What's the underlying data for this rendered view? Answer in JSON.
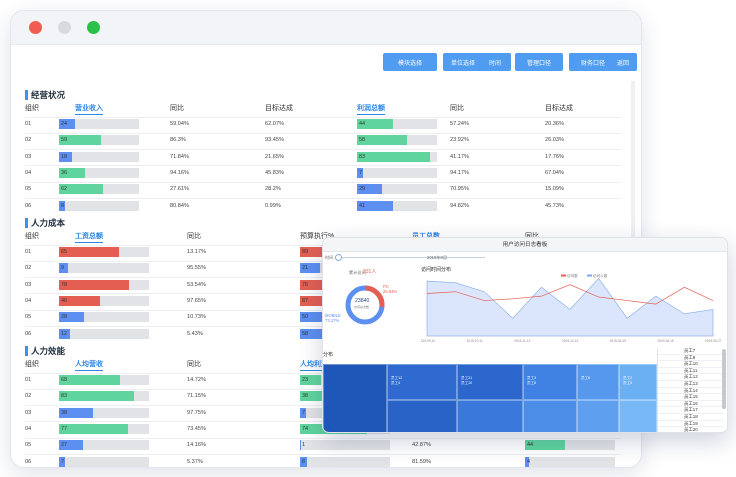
{
  "window_controls": [
    "close",
    "minimize",
    "maximize"
  ],
  "toolbar": {
    "buttons": [
      "模块选择",
      "单位选择",
      "时间",
      "管理口径",
      "财务口径",
      "返回"
    ]
  },
  "sections": [
    {
      "title": "经营状况",
      "col_headers": [
        "组织",
        "营业收入",
        "同比",
        "目标达成",
        "利润总额",
        "同比",
        "目标达成"
      ],
      "rows": [
        {
          "org": "01",
          "a_val": "24",
          "a_pct": 0.2,
          "a_color": "#5c8ff0",
          "a_yoy": "59.04%",
          "a_target": "62.07%",
          "b_val": "44",
          "b_pct": 0.45,
          "b_color": "#5fd49d",
          "b_yoy": "57.24%",
          "b_target": "20.36%"
        },
        {
          "org": "02",
          "a_val": "59",
          "a_pct": 0.53,
          "a_color": "#5fd49d",
          "a_yoy": "86.3%",
          "a_target": "93.45%",
          "b_val": "58",
          "b_pct": 0.62,
          "b_color": "#5fd49d",
          "b_yoy": "23.92%",
          "b_target": "26.03%"
        },
        {
          "org": "03",
          "a_val": "18",
          "a_pct": 0.16,
          "a_color": "#5c8ff0",
          "a_yoy": "71.84%",
          "a_target": "21.65%",
          "b_val": "83",
          "b_pct": 0.91,
          "b_color": "#5fd49d",
          "b_yoy": "41.17%",
          "b_target": "17.76%"
        },
        {
          "org": "04",
          "a_val": "36",
          "a_pct": 0.32,
          "a_color": "#5fd49d",
          "a_yoy": "94.16%",
          "a_target": "45.83%",
          "b_val": "7",
          "b_pct": 0.07,
          "b_color": "#5c8ff0",
          "b_yoy": "94.17%",
          "b_target": "67.04%"
        },
        {
          "org": "05",
          "a_val": "62",
          "a_pct": 0.55,
          "a_color": "#5fd49d",
          "a_yoy": "27.61%",
          "a_target": "28.2%",
          "b_val": "29",
          "b_pct": 0.31,
          "b_color": "#5c8ff0",
          "b_yoy": "70.95%",
          "b_target": "15.09%"
        },
        {
          "org": "06",
          "a_val": "8",
          "a_pct": 0.07,
          "a_color": "#5c8ff0",
          "a_yoy": "80.84%",
          "a_target": "0.99%",
          "b_val": "41",
          "b_pct": 0.45,
          "b_color": "#5c8ff0",
          "b_yoy": "94.82%",
          "b_target": "45.73%"
        }
      ]
    },
    {
      "title": "人力成本",
      "col_headers": [
        "组织",
        "工资总额",
        "同比",
        "预算执行%",
        "员工总数",
        "同比"
      ],
      "rows": [
        {
          "org": "01",
          "a_val": "65",
          "a_pct": 0.67,
          "a_color": "#e45f52",
          "a_yoy": "13.17%",
          "a_target": "",
          "b_val": "89",
          "b_pct": 0.9,
          "b_color": "#e45f52",
          "b_yoy": "",
          "b_target": ""
        },
        {
          "org": "02",
          "a_val": "9",
          "a_pct": 0.1,
          "a_color": "#5c8ff0",
          "a_yoy": "95.55%",
          "a_target": "",
          "b_val": "21",
          "b_pct": 0.22,
          "b_color": "#5c8ff0",
          "b_yoy": "",
          "b_target": ""
        },
        {
          "org": "03",
          "a_val": "78",
          "a_pct": 0.78,
          "a_color": "#e45f52",
          "a_yoy": "53.54%",
          "a_target": "",
          "b_val": "76",
          "b_pct": 0.77,
          "b_color": "#e45f52",
          "b_yoy": "",
          "b_target": ""
        },
        {
          "org": "04",
          "a_val": "46",
          "a_pct": 0.46,
          "a_color": "#e45f52",
          "a_yoy": "97.65%",
          "a_target": "",
          "b_val": "87",
          "b_pct": 0.87,
          "b_color": "#e45f52",
          "b_yoy": "",
          "b_target": ""
        },
        {
          "org": "05",
          "a_val": "28",
          "a_pct": 0.28,
          "a_color": "#5c8ff0",
          "a_yoy": "10.73%",
          "a_target": "",
          "b_val": "50",
          "b_pct": 0.5,
          "b_color": "#5c8ff0",
          "b_yoy": "",
          "b_target": ""
        },
        {
          "org": "06",
          "a_val": "12",
          "a_pct": 0.12,
          "a_color": "#5c8ff0",
          "a_yoy": "5.43%",
          "a_target": "",
          "b_val": "58",
          "b_pct": 0.58,
          "b_color": "#5c8ff0",
          "b_yoy": "",
          "b_target": ""
        }
      ]
    },
    {
      "title": "人力效能",
      "col_headers": [
        "组织",
        "人均营收",
        "同比",
        "人均利润"
      ],
      "rows": [
        {
          "org": "01",
          "a_val": "68",
          "a_pct": 0.68,
          "a_color": "#5fd49d",
          "a_yoy": "14.72%",
          "a_target": "",
          "b_val": "23",
          "b_pct": 0.23,
          "b_color": "#5fd49d",
          "b_yoy": "",
          "b_target": "",
          "c_val": "",
          "c_pct": 0,
          "c_color": "#5fd49d"
        },
        {
          "org": "02",
          "a_val": "83",
          "a_pct": 0.83,
          "a_color": "#5fd49d",
          "a_yoy": "71.15%",
          "a_target": "",
          "b_val": "38",
          "b_pct": 0.38,
          "b_color": "#5fd49d",
          "b_yoy": "",
          "b_target": "",
          "c_val": "",
          "c_pct": 0,
          "c_color": "#5fd49d"
        },
        {
          "org": "03",
          "a_val": "38",
          "a_pct": 0.38,
          "a_color": "#5c8ff0",
          "a_yoy": "97.75%",
          "a_target": "",
          "b_val": "7",
          "b_pct": 0.07,
          "b_color": "#5c8ff0",
          "b_yoy": "",
          "b_target": "",
          "c_val": "",
          "c_pct": 0,
          "c_color": "#5fd49d"
        },
        {
          "org": "04",
          "a_val": "77",
          "a_pct": 0.77,
          "a_color": "#5fd49d",
          "a_yoy": "73.45%",
          "a_target": "",
          "b_val": "74",
          "b_pct": 0.74,
          "b_color": "#5fd49d",
          "b_yoy": "",
          "b_target": "",
          "c_val": "",
          "c_pct": 0,
          "c_color": "#5fd49d"
        },
        {
          "org": "05",
          "a_val": "27",
          "a_pct": 0.27,
          "a_color": "#5c8ff0",
          "a_yoy": "14.16%",
          "a_target": "",
          "b_val": "1",
          "b_pct": 0.01,
          "b_color": "#5c8ff0",
          "b_yoy": "42.87%",
          "b_target": "",
          "c_val": "44",
          "c_pct": 0.44,
          "c_color": "#5fd49d"
        },
        {
          "org": "06",
          "a_val": "7",
          "a_pct": 0.07,
          "a_color": "#5c8ff0",
          "a_yoy": "5.37%",
          "a_target": "",
          "b_val": "8",
          "b_pct": 0.08,
          "b_color": "#5c8ff0",
          "b_yoy": "81.59%",
          "b_target": "",
          "c_val": "4",
          "c_pct": 0.04,
          "c_color": "#5c8ff0"
        }
      ]
    }
  ],
  "overlay": {
    "title": "用户访问日志看板",
    "left_label": "时间",
    "date_range": "2019年8月",
    "donut": {
      "header_label": "累计访问",
      "header_value": "231人",
      "center_value": "23840",
      "center_label": "访问总次数",
      "pc_label": "PC",
      "pc_pct": "26.83%",
      "mobile_label": "MOBILE",
      "mobile_pct": "73.17%",
      "pc_fraction": 0.2683
    },
    "line_chart": {
      "title": "访问时间分布",
      "legend": [
        "访问数",
        "访问人数"
      ],
      "x_labels": [
        "2019-09-10",
        "2019-10-11",
        "2019-11-12",
        "2019-12-13",
        "2019-04-29",
        "2019-06-15",
        "2019-06-27"
      ],
      "series_a": [
        62,
        60,
        50,
        20,
        55,
        30,
        65,
        20,
        45,
        25,
        30
      ],
      "series_b": [
        48,
        50,
        40,
        42,
        45,
        58,
        44,
        40,
        36,
        55,
        40
      ]
    },
    "treemap_title": "分布",
    "treemap_labels": [
      "员工12\n员工4",
      "员工31\n员工10",
      "员工3\n员工8",
      "员工6",
      "员工2\n员工5"
    ],
    "employees": [
      "员工7",
      "员工9",
      "员工10",
      "员工11",
      "员工12",
      "员工13",
      "员工14",
      "员工15",
      "员工16",
      "员工17",
      "员工18",
      "员工19",
      "员工20",
      "员工21",
      "员工22",
      "员工23",
      "员工24",
      "员工25",
      "员工26"
    ]
  }
}
